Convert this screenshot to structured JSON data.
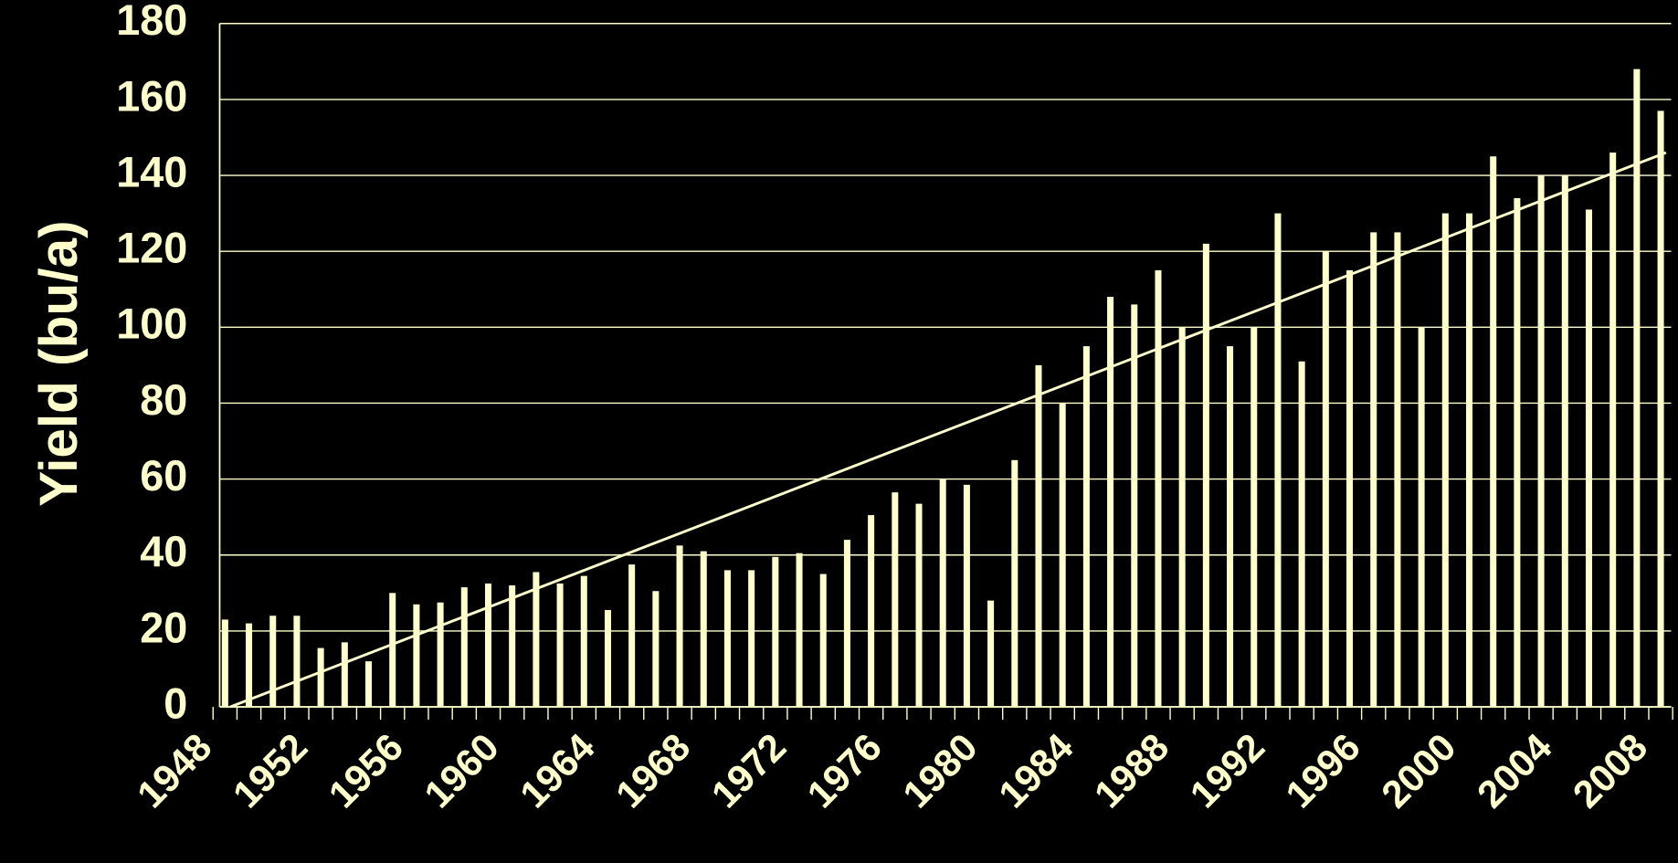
{
  "chart_data": {
    "type": "bar",
    "y_label": "Yield (bu/a)",
    "categories": [
      "1948",
      null,
      null,
      null,
      "1952",
      null,
      null,
      null,
      "1956",
      null,
      null,
      null,
      "1960",
      null,
      null,
      null,
      "1964",
      null,
      null,
      null,
      "1968",
      null,
      null,
      null,
      "1972",
      null,
      null,
      null,
      "1976",
      null,
      null,
      null,
      "1980",
      null,
      null,
      null,
      "1984",
      null,
      null,
      null,
      "1988",
      null,
      null,
      null,
      "1992",
      null,
      null,
      null,
      "1996",
      null,
      null,
      null,
      "2000",
      null,
      null,
      null,
      "2004",
      null,
      null,
      null,
      "2008",
      null
    ],
    "values": [
      null,
      23,
      22,
      24,
      24,
      15.5,
      17,
      12,
      30,
      27,
      27.5,
      31.5,
      32.5,
      32,
      35.5,
      32.5,
      34.5,
      25.5,
      37.5,
      30.5,
      42.5,
      41,
      36,
      36,
      39.5,
      40.5,
      35,
      44,
      50.5,
      56.5,
      53.5,
      60,
      58.5,
      28,
      65,
      90,
      80,
      95,
      108,
      106,
      115,
      100,
      122,
      95,
      100,
      130,
      91,
      120,
      115,
      125,
      125,
      100,
      130,
      130,
      145,
      134,
      140,
      140,
      131,
      146,
      168,
      157
    ],
    "color": "#ffffcc",
    "trendline": {
      "x_index": [
        1,
        61
      ],
      "values": [
        0,
        146
      ],
      "color": "#ffffcc"
    },
    "ylim": [
      0,
      180
    ],
    "yticks": [
      0,
      20,
      40,
      60,
      80,
      100,
      120,
      140,
      160,
      180
    ],
    "grid": true
  }
}
